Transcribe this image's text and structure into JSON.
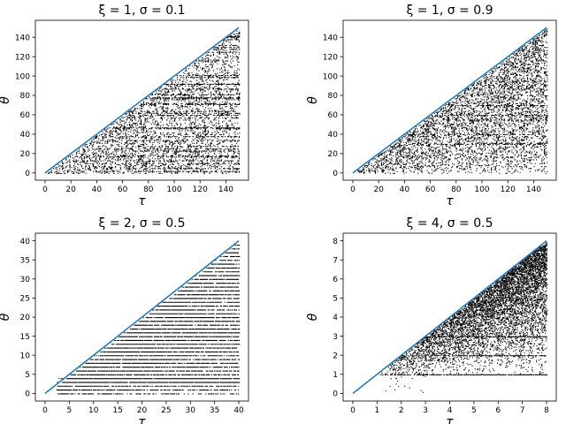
{
  "chart_data": [
    {
      "type": "scatter",
      "title": "ξ = 1,  σ = 0.1",
      "xlabel": "τ",
      "ylabel": "θ",
      "xlim": [
        -7.5,
        157.5
      ],
      "ylim": [
        -7.5,
        157.5
      ],
      "xticks": [
        0,
        20,
        40,
        60,
        80,
        100,
        120,
        140
      ],
      "yticks": [
        0,
        20,
        40,
        60,
        80,
        100,
        120,
        140
      ],
      "grid": false,
      "line": {
        "name": "",
        "color": "#1f77b4",
        "x": [
          0,
          150
        ],
        "y": [
          0,
          150
        ]
      },
      "points": {
        "color": "#000000",
        "region": "0 ≤ θ ≤ τ ≤ 150",
        "approx_count": 5000,
        "pattern": "dense horizontal streaks at many θ levels"
      }
    },
    {
      "type": "scatter",
      "title": "ξ = 1,  σ = 0.9",
      "xlabel": "τ",
      "ylabel": "θ",
      "xlim": [
        -7.5,
        157.5
      ],
      "ylim": [
        -7.5,
        157.5
      ],
      "xticks": [
        0,
        20,
        40,
        60,
        80,
        100,
        120,
        140
      ],
      "yticks": [
        0,
        20,
        40,
        60,
        80,
        100,
        120,
        140
      ],
      "grid": false,
      "line": {
        "name": "",
        "color": "#1f77b4",
        "x": [
          0,
          150
        ],
        "y": [
          0,
          150
        ]
      },
      "points": {
        "color": "#000000",
        "region": "0 ≤ θ ≤ τ ≤ 150",
        "approx_count": 5000,
        "pattern": "fairly uniform scatter, denser near the diagonal"
      }
    },
    {
      "type": "scatter",
      "title": "ξ = 2,  σ = 0.5",
      "xlabel": "τ",
      "ylabel": "θ",
      "xlim": [
        -2,
        42
      ],
      "ylim": [
        -2,
        42
      ],
      "xticks": [
        0,
        5,
        10,
        15,
        20,
        25,
        30,
        35,
        40
      ],
      "yticks": [
        0,
        5,
        10,
        15,
        20,
        25,
        30,
        35,
        40
      ],
      "grid": false,
      "line": {
        "name": "",
        "color": "#1f77b4",
        "x": [
          0,
          40
        ],
        "y": [
          0,
          40
        ]
      },
      "points": {
        "color": "#000000",
        "region": "0 ≤ θ ≤ τ ≤ 40, τ ≥ 2",
        "approx_count": 9000,
        "pattern": "very dense, increasing toward large τ"
      }
    },
    {
      "type": "scatter",
      "title": "ξ = 4,  σ = 0.5",
      "xlabel": "τ",
      "ylabel": "θ",
      "xlim": [
        -0.4,
        8.4
      ],
      "ylim": [
        -0.4,
        8.4
      ],
      "xticks": [
        0,
        1,
        2,
        3,
        4,
        5,
        6,
        7,
        8
      ],
      "yticks": [
        0,
        1,
        2,
        3,
        4,
        5,
        6,
        7,
        8
      ],
      "grid": false,
      "line": {
        "name": "",
        "color": "#1f77b4",
        "x": [
          0,
          8
        ],
        "y": [
          0,
          8
        ]
      },
      "points": {
        "color": "#000000",
        "region": "1 ≤ θ ≤ τ ≤ 8",
        "approx_count": 7000,
        "pattern": "concentrated near the diagonal, sparse below"
      }
    }
  ]
}
